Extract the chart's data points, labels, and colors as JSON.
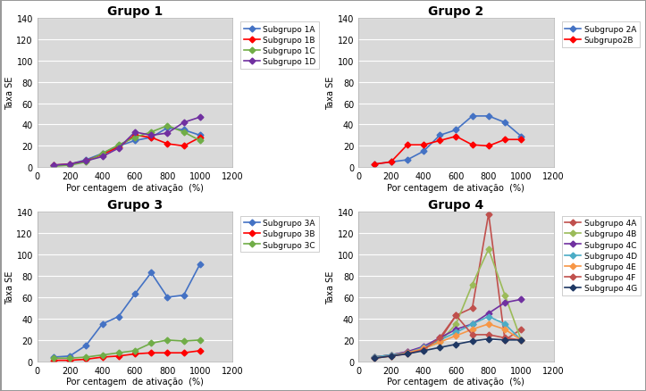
{
  "grupo1": {
    "title": "Grupo 1",
    "x": [
      100,
      200,
      300,
      400,
      500,
      600,
      700,
      800,
      900,
      1000
    ],
    "series": {
      "Subgrupo 1A": {
        "color": "#4472C4",
        "y": [
          2,
          3,
          7,
          13,
          20,
          25,
          28,
          37,
          35,
          30
        ]
      },
      "Subgrupo 1B": {
        "color": "#FF0000",
        "y": [
          2,
          3,
          6,
          12,
          19,
          30,
          28,
          22,
          20,
          28
        ]
      },
      "Subgrupo 1C": {
        "color": "#70AD47",
        "y": [
          1,
          2,
          5,
          13,
          21,
          28,
          33,
          39,
          33,
          25
        ]
      },
      "Subgrupo 1D": {
        "color": "#7030A0",
        "y": [
          2,
          3,
          6,
          10,
          18,
          33,
          30,
          32,
          42,
          47
        ]
      }
    }
  },
  "grupo2": {
    "title": "Grupo 2",
    "x": [
      100,
      200,
      300,
      400,
      500,
      600,
      700,
      800,
      900,
      1000
    ],
    "series": {
      "Subgrupo 2A": {
        "color": "#4472C4",
        "y": [
          3,
          5,
          7,
          15,
          30,
          35,
          48,
          48,
          42,
          29
        ]
      },
      "Subgrupo2B": {
        "color": "#FF0000",
        "y": [
          3,
          5,
          21,
          21,
          25,
          29,
          21,
          20,
          26,
          26
        ]
      }
    }
  },
  "grupo3": {
    "title": "Grupo 3",
    "x": [
      100,
      200,
      300,
      400,
      500,
      600,
      700,
      800,
      900,
      1000
    ],
    "series": {
      "Subgrupo 3A": {
        "color": "#4472C4",
        "y": [
          4,
          5,
          15,
          35,
          42,
          63,
          83,
          60,
          62,
          91
        ]
      },
      "Subgrupo 3B": {
        "color": "#FF0000",
        "y": [
          1,
          1,
          2,
          4,
          5,
          7,
          8,
          8,
          8,
          10
        ]
      },
      "Subgrupo 3C": {
        "color": "#70AD47",
        "y": [
          3,
          3,
          4,
          6,
          8,
          10,
          17,
          20,
          19,
          20
        ]
      }
    }
  },
  "grupo4": {
    "title": "Grupo 4",
    "x": [
      100,
      200,
      300,
      400,
      500,
      600,
      700,
      800,
      900,
      1000
    ],
    "series": {
      "Subgrupo 4A": {
        "color": "#C0504D",
        "y": [
          4,
          6,
          9,
          13,
          20,
          43,
          50,
          138,
          20,
          30
        ]
      },
      "Subgrupo 4B": {
        "color": "#9BBB59",
        "y": [
          4,
          6,
          8,
          12,
          18,
          35,
          72,
          105,
          62,
          20
        ]
      },
      "Subgrupo 4C": {
        "color": "#7030A0",
        "y": [
          4,
          6,
          9,
          14,
          22,
          30,
          35,
          45,
          55,
          58
        ]
      },
      "Subgrupo 4D": {
        "color": "#4BACC6",
        "y": [
          4,
          6,
          8,
          13,
          20,
          27,
          35,
          42,
          35,
          20
        ]
      },
      "Subgrupo 4E": {
        "color": "#F79646",
        "y": [
          3,
          5,
          8,
          12,
          18,
          24,
          30,
          35,
          30,
          20
        ]
      },
      "Subgrupo 4F": {
        "color": "#C0504D",
        "y": [
          3,
          5,
          7,
          11,
          22,
          43,
          25,
          25,
          22,
          20
        ]
      },
      "Subgrupo 4G": {
        "color": "#1F3864",
        "y": [
          3,
          5,
          7,
          10,
          13,
          16,
          19,
          21,
          20,
          20
        ]
      }
    }
  },
  "xlabel": "Por centagem  de ativação  (%)",
  "ylabel": "Taxa SE",
  "xlim": [
    0,
    1200
  ],
  "ylim": [
    0,
    140
  ],
  "xticks": [
    0,
    200,
    400,
    600,
    800,
    1000,
    1200
  ],
  "yticks": [
    0,
    20,
    40,
    60,
    80,
    100,
    120,
    140
  ],
  "background_color": "#D9D9D9",
  "figure_bg": "#FFFFFF",
  "border_color": "#FFFFFF"
}
